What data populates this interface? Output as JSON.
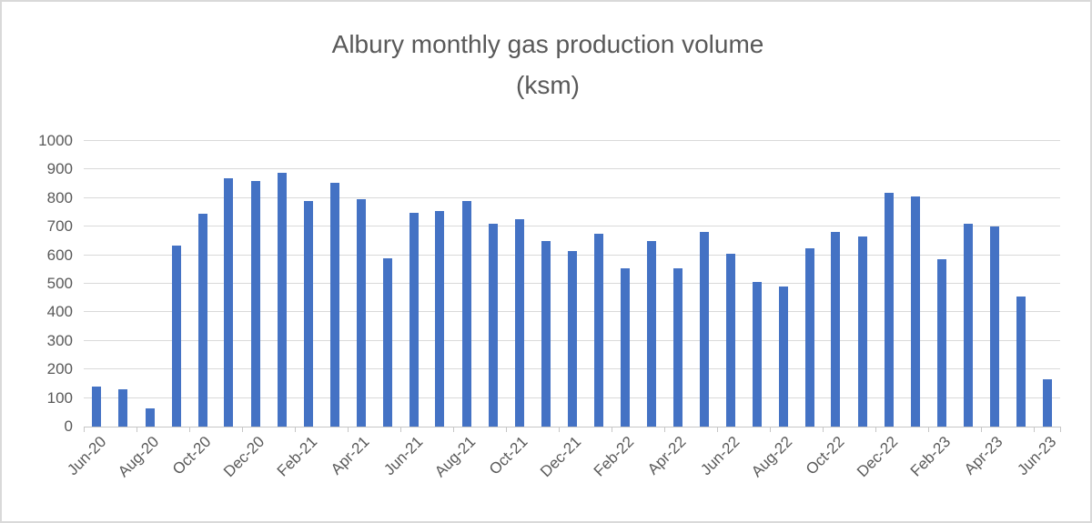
{
  "title": {
    "line1": "Albury monthly gas production volume",
    "line2": "(ksm)"
  },
  "chart_data": {
    "type": "bar",
    "title": "Albury monthly gas production volume (ksm)",
    "categories": [
      "Jun-20",
      "Jul-20",
      "Aug-20",
      "Sep-20",
      "Oct-20",
      "Nov-20",
      "Dec-20",
      "Jan-21",
      "Feb-21",
      "Mar-21",
      "Apr-21",
      "May-21",
      "Jun-21",
      "Jul-21",
      "Aug-21",
      "Sep-21",
      "Oct-21",
      "Nov-21",
      "Dec-21",
      "Jan-22",
      "Feb-22",
      "Mar-22",
      "Apr-22",
      "May-22",
      "Jun-22",
      "Jul-22",
      "Aug-22",
      "Sep-22",
      "Oct-22",
      "Nov-22",
      "Dec-22",
      "Jan-23",
      "Feb-23",
      "Mar-23",
      "Apr-23",
      "May-23",
      "Jun-23"
    ],
    "values": [
      140,
      130,
      65,
      635,
      745,
      870,
      860,
      890,
      790,
      855,
      795,
      590,
      750,
      755,
      790,
      710,
      725,
      650,
      615,
      675,
      555,
      650,
      555,
      680,
      605,
      505,
      490,
      625,
      680,
      665,
      820,
      805,
      585,
      710,
      700,
      455,
      165
    ],
    "visible_x_tick_labels": [
      "Jun-20",
      "Aug-20",
      "Oct-20",
      "Dec-20",
      "Feb-21",
      "Apr-21",
      "Jun-21",
      "Aug-21",
      "Oct-21",
      "Dec-21",
      "Feb-22",
      "Apr-22",
      "Jun-22",
      "Aug-22",
      "Oct-22",
      "Dec-22",
      "Feb-23",
      "Apr-23",
      "Jun-23"
    ],
    "x_label_interval": 2,
    "xlabel": "",
    "ylabel": "",
    "ylim": [
      0,
      1000
    ],
    "yticks": [
      0,
      100,
      200,
      300,
      400,
      500,
      600,
      700,
      800,
      900,
      1000
    ],
    "grid": "horizontal",
    "legend": "none",
    "bar_color": "#4472c4",
    "gridline_color": "#d9d9d9",
    "axis_color": "#c6c6c6",
    "text_color": "#595959"
  }
}
